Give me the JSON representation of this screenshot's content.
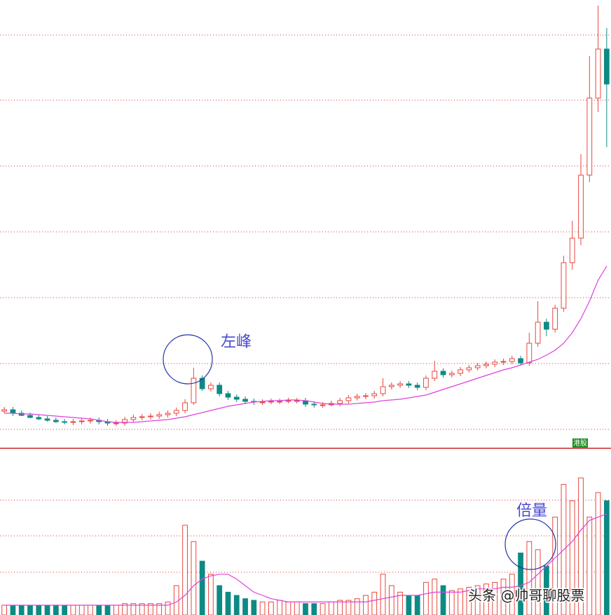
{
  "chart_data": {
    "type": "candlestick",
    "annotations": [
      "左峰",
      "倍量"
    ],
    "badge": "港股",
    "watermark": "头条 @帅哥聊股票",
    "ylim": [
      0,
      640
    ],
    "up_color": "#e8473f",
    "down_color": "#0e8a84",
    "ma_color": "#e040e0",
    "open": [
      53,
      55,
      50,
      47,
      44,
      42,
      40,
      38,
      37,
      38,
      39,
      40,
      38,
      36,
      36,
      41,
      44,
      45,
      46,
      48,
      50,
      54,
      65,
      100,
      85,
      90,
      78,
      73,
      70,
      67,
      66,
      66,
      67,
      67,
      68,
      68,
      63,
      62,
      62,
      64,
      68,
      72,
      74,
      75,
      78,
      88,
      90,
      92,
      90,
      87,
      100,
      110,
      105,
      107,
      112,
      115,
      118,
      120,
      123,
      124,
      128,
      122,
      150,
      180,
      170,
      200,
      265,
      300,
      390,
      500,
      570
    ],
    "high": [
      59,
      59,
      54,
      51,
      48,
      46,
      44,
      42,
      42,
      43,
      44,
      44,
      42,
      40,
      45,
      48,
      49,
      50,
      52,
      54,
      58,
      70,
      115,
      104,
      94,
      94,
      82,
      77,
      74,
      71,
      70,
      71,
      71,
      72,
      72,
      72,
      67,
      66,
      68,
      72,
      76,
      78,
      79,
      82,
      100,
      94,
      96,
      96,
      94,
      104,
      125,
      114,
      111,
      116,
      119,
      122,
      124,
      127,
      128,
      132,
      132,
      165,
      210,
      185,
      205,
      275,
      325,
      420,
      560,
      632,
      600
    ],
    "low": [
      50,
      46,
      46,
      43,
      40,
      38,
      36,
      34,
      33,
      34,
      35,
      34,
      32,
      32,
      32,
      37,
      40,
      41,
      42,
      44,
      46,
      50,
      62,
      82,
      81,
      74,
      69,
      66,
      63,
      62,
      62,
      63,
      63,
      64,
      64,
      59,
      58,
      58,
      60,
      60,
      64,
      68,
      70,
      71,
      74,
      84,
      86,
      86,
      83,
      83,
      96,
      101,
      101,
      103,
      108,
      111,
      114,
      116,
      119,
      120,
      118,
      118,
      145,
      160,
      165,
      195,
      255,
      290,
      380,
      480,
      430
    ],
    "close": [
      55,
      50,
      47,
      44,
      42,
      40,
      38,
      37,
      38,
      39,
      40,
      38,
      36,
      36,
      41,
      44,
      45,
      46,
      48,
      50,
      54,
      65,
      100,
      85,
      90,
      78,
      73,
      70,
      67,
      66,
      66,
      67,
      67,
      68,
      68,
      63,
      62,
      62,
      64,
      68,
      72,
      74,
      75,
      78,
      88,
      90,
      92,
      90,
      87,
      100,
      110,
      105,
      107,
      112,
      115,
      118,
      120,
      123,
      124,
      128,
      122,
      150,
      180,
      170,
      200,
      265,
      300,
      390,
      500,
      570,
      520
    ],
    "ma": [
      50,
      50,
      49,
      49,
      48,
      47,
      46,
      45,
      44,
      43,
      42,
      40,
      38,
      37,
      37,
      37,
      38,
      39,
      40,
      41,
      43,
      45,
      48,
      51,
      54,
      57,
      60,
      62,
      64,
      66,
      67,
      68,
      68,
      69,
      69,
      68,
      66,
      64,
      63,
      63,
      63,
      64,
      65,
      66,
      68,
      69,
      70,
      72,
      74,
      76,
      80,
      84,
      88,
      92,
      96,
      100,
      104,
      108,
      112,
      115,
      119,
      123,
      127,
      133,
      140,
      150,
      165,
      185,
      210,
      240,
      260
    ],
    "volume_ylim": [
      0,
      100
    ],
    "volume": [
      6,
      6,
      6,
      6,
      6,
      6,
      6,
      6,
      6,
      6,
      6,
      6,
      6,
      6,
      7,
      7,
      7,
      7,
      7,
      8,
      18,
      55,
      45,
      33,
      25,
      18,
      14,
      12,
      10,
      9,
      8,
      8,
      9,
      8,
      8,
      7,
      7,
      7,
      8,
      9,
      9,
      10,
      12,
      14,
      25,
      18,
      14,
      12,
      12,
      20,
      22,
      18,
      15,
      16,
      17,
      18,
      19,
      20,
      22,
      25,
      38,
      45,
      40,
      30,
      60,
      80,
      70,
      84,
      60,
      75,
      70
    ],
    "volume_ma": [
      6,
      6,
      6,
      6,
      6,
      6,
      6,
      6,
      6,
      6,
      6,
      6,
      6,
      6,
      6,
      6,
      6,
      6,
      6,
      6,
      8,
      12,
      18,
      22,
      24,
      25,
      25,
      22,
      18,
      14,
      12,
      10,
      9,
      8,
      8,
      8,
      8,
      8,
      8,
      8,
      8,
      8,
      8,
      9,
      10,
      11,
      12,
      12,
      12,
      13,
      14,
      14,
      14,
      14,
      15,
      16,
      16,
      16,
      17,
      17,
      18,
      20,
      25,
      30,
      35,
      40,
      45,
      52,
      58,
      60,
      62
    ]
  }
}
